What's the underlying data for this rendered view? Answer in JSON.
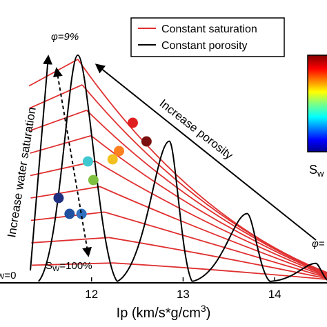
{
  "chart_data": {
    "type": "line",
    "title": "",
    "xlabel": "Ip (km/s*g/cm",
    "xlabel_sup": "3",
    "xlabel_end": ")",
    "ylabel": "",
    "xlim": [
      11.0,
      14.5
    ],
    "x_ticks": [
      12,
      13,
      14
    ],
    "x_tick_labels": [
      "12",
      "13",
      "14"
    ],
    "legend_position": "top",
    "legend": [
      {
        "label": "Constant  saturation",
        "color": "#e03030"
      },
      {
        "label": "Constant  porosity",
        "color": "#000000"
      }
    ],
    "colorbar": {
      "label": "S",
      "label_sub": "w",
      "label_tail": " (",
      "colormap": "jet"
    },
    "annotations": {
      "phi_top": "φ=9%",
      "phi_right": "φ=",
      "increase_sw": "Increase water saturation",
      "increase_phi": "Increase porosity",
      "sw_100": "S",
      "sw_100_sub": "W",
      "sw_100_tail": "=100%",
      "sw_0": "=0"
    },
    "series": [
      {
        "type": "constant-porosity",
        "x": [
          11.42,
          11.85,
          12.28
        ],
        "y_relative": [
          0,
          1.0,
          0
        ],
        "label": "φ=9%"
      },
      {
        "type": "constant-porosity",
        "x": [
          12.28,
          12.85,
          13.1
        ],
        "y_relative": [
          0,
          0.62,
          0
        ]
      },
      {
        "type": "constant-porosity",
        "x": [
          13.1,
          13.7,
          13.95
        ],
        "y_relative": [
          0,
          0.3,
          0
        ]
      },
      {
        "type": "constant-porosity",
        "x": [
          13.95,
          14.45,
          14.6
        ],
        "y_relative": [
          0,
          0.08,
          0
        ]
      }
    ],
    "data_points": [
      {
        "x": 12.45,
        "color": "#e02020"
      },
      {
        "x": 12.6,
        "color": "#7a1010"
      },
      {
        "x": 12.3,
        "color": "#ff8020"
      },
      {
        "x": 12.23,
        "color": "#f2c020"
      },
      {
        "x": 11.96,
        "color": "#40c8d0"
      },
      {
        "x": 12.02,
        "color": "#80c040"
      },
      {
        "x": 11.64,
        "color": "#203080"
      },
      {
        "x": 11.76,
        "color": "#2050a0"
      },
      {
        "x": 11.89,
        "color": "#3070c0"
      }
    ]
  }
}
